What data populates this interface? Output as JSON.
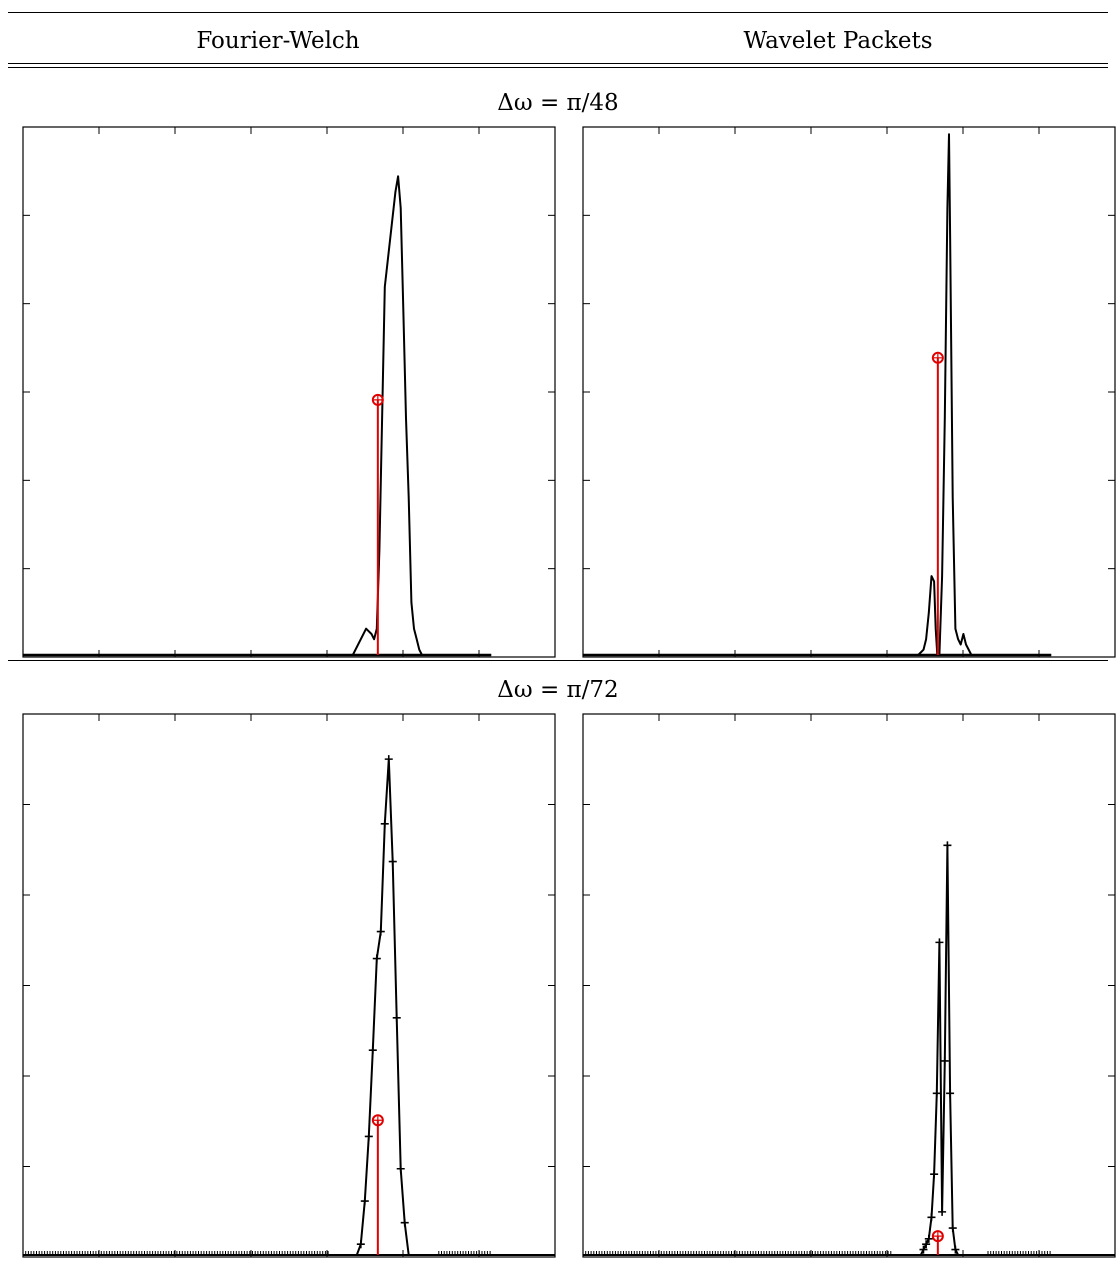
{
  "header": {
    "col_left": "Fourier-Welch",
    "col_right": "Wavelet Packets"
  },
  "rows": [
    {
      "title": "Δω = π/48"
    },
    {
      "title": "Δω = π/72"
    }
  ],
  "chart_data": [
    {
      "type": "line",
      "panel": "Fourier-Welch, Δω = π/48",
      "xlim": [
        0,
        1
      ],
      "ylim": [
        0,
        1
      ],
      "x": [
        0.0,
        0.6,
        0.62,
        0.635,
        0.645,
        0.655,
        0.66,
        0.665,
        0.67,
        0.675,
        0.68,
        0.7,
        0.705,
        0.71,
        0.715,
        0.72,
        0.725,
        0.73,
        0.735,
        0.74,
        0.745,
        0.75,
        0.76,
        0.78,
        0.88
      ],
      "y": [
        0.0,
        0.0,
        0.0,
        0.03,
        0.05,
        0.04,
        0.03,
        0.05,
        0.2,
        0.45,
        0.7,
        0.88,
        0.91,
        0.85,
        0.65,
        0.45,
        0.3,
        0.1,
        0.05,
        0.03,
        0.01,
        0.0,
        0.0,
        0.0,
        0.0
      ],
      "marker_stem": {
        "x": 0.667,
        "y": 0.485,
        "color": "#e00000"
      },
      "markers": false,
      "grid": false,
      "legend": "none"
    },
    {
      "type": "line",
      "panel": "Wavelet Packets, Δω = π/48",
      "xlim": [
        0,
        1
      ],
      "ylim": [
        0,
        1
      ],
      "x": [
        0.0,
        0.6,
        0.63,
        0.64,
        0.645,
        0.65,
        0.655,
        0.66,
        0.663,
        0.666,
        0.67,
        0.675,
        0.68,
        0.685,
        0.688,
        0.69,
        0.695,
        0.7,
        0.705,
        0.71,
        0.715,
        0.72,
        0.73,
        0.75,
        0.88
      ],
      "y": [
        0.0,
        0.0,
        0.0,
        0.01,
        0.03,
        0.08,
        0.15,
        0.14,
        0.05,
        0.0,
        0.0,
        0.15,
        0.45,
        0.85,
        0.99,
        0.8,
        0.3,
        0.05,
        0.03,
        0.02,
        0.04,
        0.02,
        0.0,
        0.0,
        0.0
      ],
      "marker_stem": {
        "x": 0.667,
        "y": 0.565,
        "color": "#e00000"
      },
      "markers": false,
      "grid": false,
      "legend": "none"
    },
    {
      "type": "line",
      "panel": "Fourier-Welch, Δω = π/72",
      "xlim": [
        0,
        1
      ],
      "ylim": [
        0,
        1
      ],
      "x": [
        0.0,
        0.6275,
        0.635,
        0.6425,
        0.65,
        0.6575,
        0.665,
        0.6725,
        0.68,
        0.6875,
        0.695,
        0.7025,
        0.71,
        0.7175,
        0.725,
        0.7325,
        1.0
      ],
      "y": [
        0.0,
        0.0,
        0.02,
        0.1,
        0.22,
        0.38,
        0.55,
        0.6,
        0.8,
        0.92,
        0.73,
        0.44,
        0.16,
        0.06,
        0.0,
        0.0,
        0.0
      ],
      "marker_stem": {
        "x": 0.667,
        "y": 0.25,
        "color": "#e00000"
      },
      "markers": true,
      "grid": false,
      "legend": "none"
    },
    {
      "type": "line",
      "panel": "Wavelet Packets, Δω = π/72",
      "xlim": [
        0,
        1
      ],
      "ylim": [
        0,
        1
      ],
      "x": [
        0.0,
        0.63,
        0.635,
        0.64,
        0.645,
        0.65,
        0.655,
        0.66,
        0.665,
        0.67,
        0.675,
        0.68,
        0.685,
        0.69,
        0.695,
        0.7,
        0.705,
        0.71,
        0.715,
        0.72,
        1.0
      ],
      "y": [
        0.0,
        0.0,
        0.0,
        0.01,
        0.02,
        0.03,
        0.07,
        0.15,
        0.3,
        0.58,
        0.08,
        0.36,
        0.76,
        0.3,
        0.05,
        0.01,
        0.0,
        0.0,
        0.0,
        0.0,
        0.0
      ],
      "marker_stem": {
        "x": 0.667,
        "y": 0.035,
        "color": "#e00000"
      },
      "markers": true,
      "grid": false,
      "legend": "none"
    }
  ]
}
